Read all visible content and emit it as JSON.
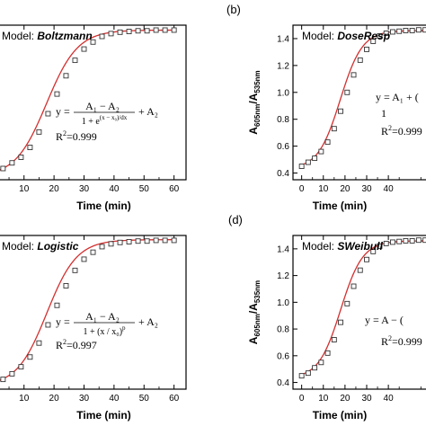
{
  "chart_data": [
    {
      "type": "scatter",
      "panel_label": "",
      "model_prefix": "Model: ",
      "model_name": "Boltzmann",
      "xlabel": "Time (min)",
      "ylabel": "",
      "xlim": [
        -4,
        64
      ],
      "ylim": [
        0.4,
        1.5
      ],
      "x_ticks": [
        10,
        20,
        30,
        40,
        50,
        60
      ],
      "y_ticks": [],
      "equation": "y = (A1 − A2)/(1 + e^((x − x0)/dx)) + A2",
      "r2": "R²=0.999",
      "fit": {
        "A1": 0.42,
        "A2": 1.465,
        "x0": 17.5,
        "dx": 5.2
      },
      "points": {
        "x": [
          0,
          3,
          6,
          9,
          12,
          15,
          18,
          21,
          24,
          27,
          30,
          33,
          36,
          39,
          42,
          45,
          48,
          51,
          54,
          57,
          60
        ],
        "y": [
          0.46,
          0.48,
          0.52,
          0.56,
          0.63,
          0.74,
          0.87,
          1.01,
          1.14,
          1.25,
          1.33,
          1.38,
          1.42,
          1.44,
          1.45,
          1.455,
          1.46,
          1.46,
          1.465,
          1.465,
          1.465
        ]
      }
    },
    {
      "type": "scatter",
      "panel_label": "(b)",
      "model_prefix": "Model: ",
      "model_name": "DoseResp",
      "xlabel": "Time (min)",
      "ylabel": "A605nm/A535nm",
      "xlim": [
        -4,
        64
      ],
      "ylim": [
        0.35,
        1.5
      ],
      "x_ticks": [
        0,
        10,
        20,
        30,
        40
      ],
      "y_ticks": [
        0.4,
        0.6,
        0.8,
        1.0,
        1.2,
        1.4
      ],
      "equation": "y = A1 + (A2 − A1)/(1 + 10^((logx0 − x)p))",
      "r2": "R²=0.999",
      "fit": {
        "A1": 0.43,
        "A2": 1.46,
        "x0": 17.8,
        "dx": 5.1
      },
      "points": {
        "x": [
          0,
          3,
          6,
          9,
          12,
          15,
          18,
          21,
          24,
          27,
          30,
          33,
          36,
          39,
          42,
          45,
          48,
          51,
          54,
          57,
          60
        ],
        "y": [
          0.45,
          0.48,
          0.51,
          0.56,
          0.63,
          0.73,
          0.86,
          1.0,
          1.13,
          1.24,
          1.32,
          1.38,
          1.42,
          1.44,
          1.45,
          1.455,
          1.46,
          1.46,
          1.465,
          1.465,
          1.465
        ]
      }
    },
    {
      "type": "scatter",
      "panel_label": "",
      "model_prefix": "Model: ",
      "model_name": "Logistic",
      "xlabel": "Time (min)",
      "ylabel": "",
      "xlim": [
        -4,
        64
      ],
      "ylim": [
        0.4,
        1.5
      ],
      "x_ticks": [
        10,
        20,
        30,
        40,
        50,
        60
      ],
      "y_ticks": [],
      "equation": "y = (A1 − A2)/(1 + (x/x0)^p) + A2",
      "r2": "R²=0.997",
      "fit": {
        "A1": 0.42,
        "A2": 1.47,
        "x0": 17.6,
        "dx": 5.0
      },
      "points": {
        "x": [
          0,
          3,
          6,
          9,
          12,
          15,
          18,
          21,
          24,
          27,
          30,
          33,
          36,
          39,
          42,
          45,
          48,
          51,
          54,
          57,
          60
        ],
        "y": [
          0.45,
          0.47,
          0.51,
          0.56,
          0.63,
          0.73,
          0.86,
          1.0,
          1.14,
          1.25,
          1.33,
          1.38,
          1.42,
          1.44,
          1.45,
          1.455,
          1.46,
          1.46,
          1.465,
          1.465,
          1.465
        ]
      }
    },
    {
      "type": "scatter",
      "panel_label": "(d)",
      "model_prefix": "Model: ",
      "model_name": "SWeibull",
      "xlabel": "Time (min)",
      "ylabel": "A605nm/A535nm",
      "xlim": [
        -4,
        64
      ],
      "ylim": [
        0.35,
        1.5
      ],
      "x_ticks": [
        0,
        10,
        20,
        30,
        40
      ],
      "y_ticks": [
        0.4,
        0.6,
        0.8,
        1.0,
        1.2,
        1.4
      ],
      "equation": "y = A − (A − y0)e^(−(kx)^d)",
      "r2": "R²=0.999",
      "fit": {
        "A1": 0.43,
        "A2": 1.46,
        "x0": 18.0,
        "dx": 5.1
      },
      "points": {
        "x": [
          0,
          3,
          6,
          9,
          12,
          15,
          18,
          21,
          24,
          27,
          30,
          33,
          36,
          39,
          42,
          45,
          48,
          51,
          54,
          57,
          60
        ],
        "y": [
          0.45,
          0.47,
          0.51,
          0.55,
          0.62,
          0.72,
          0.85,
          0.99,
          1.12,
          1.24,
          1.32,
          1.38,
          1.42,
          1.44,
          1.45,
          1.455,
          1.46,
          1.46,
          1.465,
          1.465,
          1.465
        ]
      }
    }
  ],
  "colors": {
    "fit_line": "#d32f2f",
    "marker": "#333333",
    "axis": "#000000"
  }
}
